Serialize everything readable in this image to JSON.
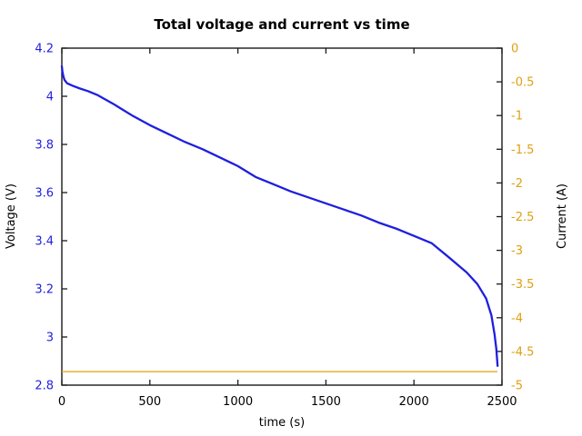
{
  "chart_data": {
    "type": "line",
    "title": "Total voltage and current vs time",
    "xlabel": "time (s)",
    "ylabel_left": "Voltage (V)",
    "ylabel_right": "Current (A)",
    "xlim": [
      0,
      2500
    ],
    "ylim_left": [
      2.8,
      4.2
    ],
    "ylim_right": [
      -5,
      0
    ],
    "grid": false,
    "legend": "none",
    "x_ticks": [
      0,
      500,
      1000,
      1500,
      2000,
      2500
    ],
    "x_tick_labels": [
      "0",
      "500",
      "1000",
      "1500",
      "2000",
      "2500"
    ],
    "y_ticks_left": [
      4.2,
      4.0,
      3.8,
      3.6,
      3.4,
      3.2,
      3.0,
      2.8
    ],
    "y_tick_labels_left": [
      "4.2",
      "4",
      "3.8",
      "3.6",
      "3.4",
      "3.2",
      "3",
      "2.8"
    ],
    "y_ticks_right": [
      0,
      -0.5,
      -1,
      -1.5,
      -2,
      -2.5,
      -3,
      -3.5,
      -4,
      -4.5,
      -5
    ],
    "y_tick_labels_right": [
      "0",
      "-0.5",
      "-1",
      "-1.5",
      "-2",
      "-2.5",
      "-3",
      "-3.5",
      "-4",
      "-4.5",
      "-5"
    ],
    "series": [
      {
        "name": "Total voltage",
        "axis": "left",
        "units": "V",
        "points": [
          [
            0,
            4.125
          ],
          [
            3,
            4.105
          ],
          [
            8,
            4.085
          ],
          [
            15,
            4.068
          ],
          [
            30,
            4.054
          ],
          [
            60,
            4.044
          ],
          [
            100,
            4.033
          ],
          [
            150,
            4.021
          ],
          [
            200,
            4.006
          ],
          [
            300,
            3.965
          ],
          [
            400,
            3.92
          ],
          [
            500,
            3.88
          ],
          [
            600,
            3.845
          ],
          [
            700,
            3.81
          ],
          [
            800,
            3.78
          ],
          [
            900,
            3.745
          ],
          [
            1000,
            3.71
          ],
          [
            1100,
            3.665
          ],
          [
            1200,
            3.635
          ],
          [
            1300,
            3.605
          ],
          [
            1400,
            3.58
          ],
          [
            1500,
            3.555
          ],
          [
            1600,
            3.53
          ],
          [
            1700,
            3.505
          ],
          [
            1800,
            3.475
          ],
          [
            1900,
            3.45
          ],
          [
            2000,
            3.42
          ],
          [
            2100,
            3.39
          ],
          [
            2200,
            3.33
          ],
          [
            2300,
            3.268
          ],
          [
            2360,
            3.22
          ],
          [
            2410,
            3.16
          ],
          [
            2440,
            3.09
          ],
          [
            2458,
            3.01
          ],
          [
            2468,
            2.95
          ],
          [
            2475,
            2.88
          ]
        ]
      },
      {
        "name": "Current",
        "axis": "right",
        "units": "A",
        "constant_value": -4.8,
        "t_start": 0,
        "t_end": 2475
      }
    ],
    "colors": {
      "voltage": "#1f1fdf",
      "current": "#e0a010",
      "title": "#000000",
      "axis_text": "#000000",
      "spine": "#1a1a1a",
      "background": "#ffffff"
    }
  }
}
